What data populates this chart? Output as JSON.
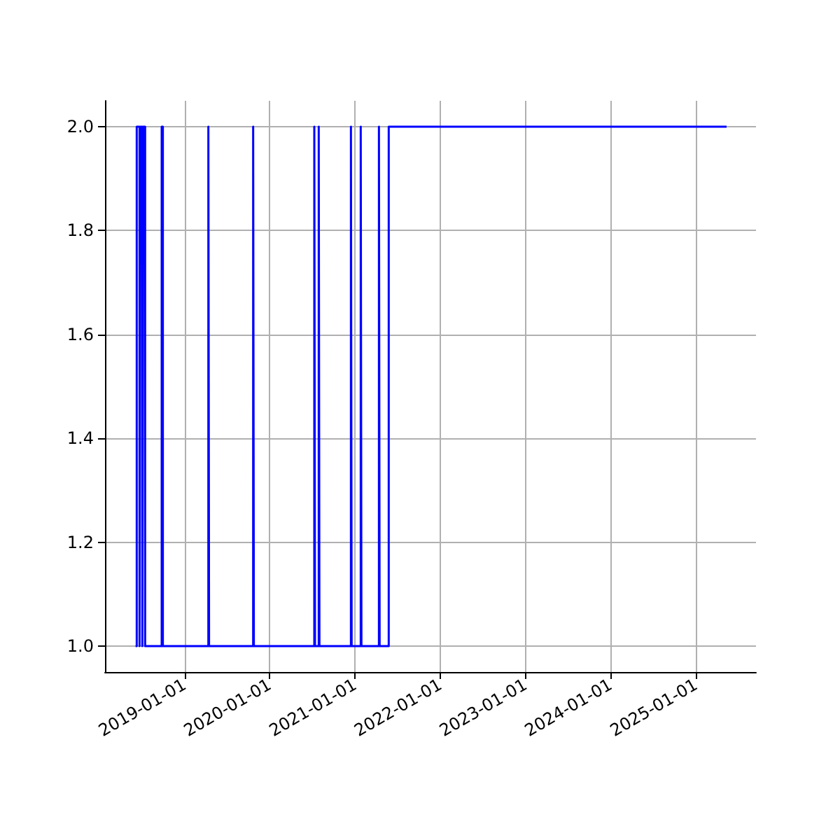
{
  "chart_data": {
    "type": "step",
    "x": [
      "2018-06-05",
      "2018-06-10",
      "2018-06-22",
      "2018-06-26",
      "2018-07-04",
      "2018-07-08",
      "2018-07-16",
      "2018-09-25",
      "2018-09-30",
      "2019-04-13",
      "2019-04-16",
      "2019-10-22",
      "2019-10-25",
      "2020-07-10",
      "2020-07-13",
      "2020-07-29",
      "2020-08-01",
      "2020-12-14",
      "2020-12-17",
      "2021-01-25",
      "2021-01-28",
      "2021-04-13",
      "2021-04-16",
      "2021-05-25",
      "2025-05-12"
    ],
    "series": [
      {
        "color": "#0000ff",
        "values": [
          1,
          2,
          1,
          2,
          1,
          2,
          1,
          2,
          1,
          2,
          1,
          2,
          1,
          2,
          1,
          2,
          1,
          2,
          1,
          2,
          1,
          2,
          1,
          2,
          2
        ]
      }
    ],
    "xlim": [
      "2018-01-25",
      "2025-09-15"
    ],
    "xticks": [
      "2019-01-01",
      "2020-01-01",
      "2021-01-01",
      "2022-01-01",
      "2023-01-01",
      "2024-01-01",
      "2025-01-01"
    ],
    "ylim": [
      0.95,
      2.05
    ],
    "yticks": [
      {
        "value": 1,
        "label": "1.0"
      },
      {
        "value": 1.2,
        "label": "1.2"
      },
      {
        "value": 1.4,
        "label": "1.4"
      },
      {
        "value": 1.6,
        "label": "1.6"
      },
      {
        "value": 1.8,
        "label": "1.8"
      },
      {
        "value": 2,
        "label": "2.0"
      }
    ],
    "grid": true,
    "marker": "none",
    "line_style": "solid"
  }
}
